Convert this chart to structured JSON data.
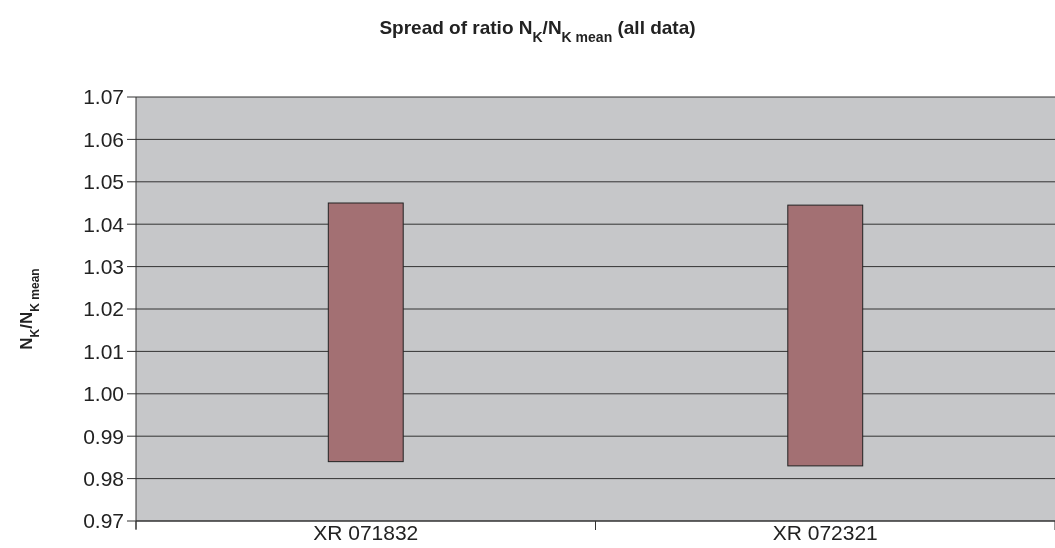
{
  "chart_data": {
    "type": "bar",
    "title": "Spread of ratio N$_{K}$/N$_{K mean}$ (all data)",
    "ylabel": "N$_{K}$/N$_{K mean}$",
    "categories": [
      "XR 071832",
      "XR 072321"
    ],
    "values": [
      0.061,
      0.0615
    ],
    "base": [
      0.984,
      0.983
    ],
    "color": "#a37073",
    "ylim": [
      0.97,
      1.07
    ],
    "yticks": [
      0.97,
      0.98,
      0.99,
      {
        "value": 1,
        "label": "1.00"
      },
      1.01,
      1.02,
      1.03,
      1.04,
      1.05,
      1.06,
      1.07
    ],
    "grid": "y"
  }
}
